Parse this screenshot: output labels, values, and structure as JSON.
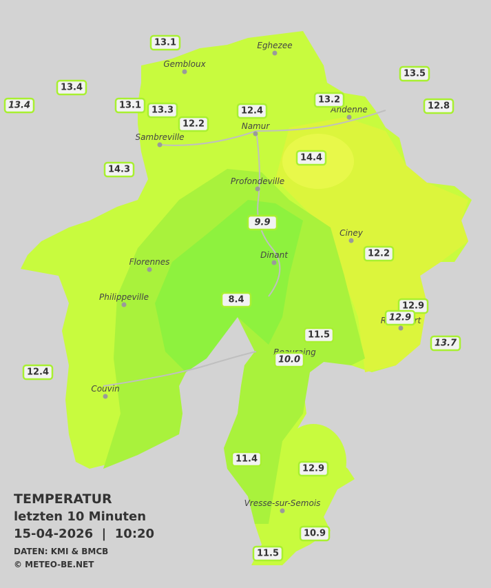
{
  "map": {
    "cities": [
      "Eghezee",
      "Gembloux",
      "Andenne",
      "Namur",
      "Sambreville",
      "Profondeville",
      "Ciney",
      "Dinant",
      "Florennes",
      "Philippeville",
      "Beauraing",
      "Rochefort",
      "Couvin",
      "Vresse-sur-Semois"
    ],
    "stations": [
      "13.1",
      "13.4",
      "13.4",
      "13.1",
      "13.3",
      "12.2",
      "12.4",
      "13.2",
      "13.5",
      "12.8",
      "14.3",
      "14.4",
      "9.9",
      "12.2",
      "8.4",
      "12.9",
      "12.9",
      "11.5",
      "13.7",
      "10.0",
      "12.4",
      "11.4",
      "12.9",
      "10.9",
      "11.5"
    ]
  },
  "legend": {
    "title": "TEMPERATUR",
    "period": "letzten 10 Minuten",
    "datetime": "15-04-2026  |  10:20",
    "source": "DATEN: KMI & BMCB",
    "copyright": "© METEO-BE.NET"
  }
}
